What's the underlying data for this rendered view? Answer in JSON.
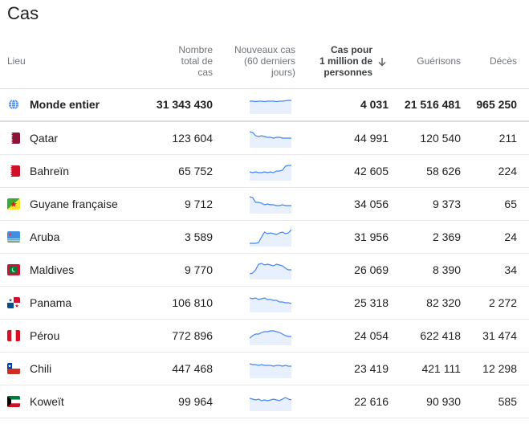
{
  "title": "Cas",
  "headers": {
    "location": "Lieu",
    "total_cases": [
      "Nombre",
      "total de",
      "cas"
    ],
    "new_cases": [
      "Nouveaux cas",
      "(60 derniers",
      "jours)"
    ],
    "per_million": [
      "Cas pour",
      "1 million de",
      "personnes"
    ],
    "recovered": "Guérisons",
    "deaths": "Décès",
    "sort_icon": "arrow-down-icon"
  },
  "rows": [
    {
      "name": "Monde entier",
      "total": "31 343 430",
      "per_million": "4 031",
      "recovered": "21 516 481",
      "deaths": "965 250",
      "icon": "globe-icon",
      "spark": [
        8,
        8,
        8.5,
        8,
        8,
        8.5,
        8,
        8,
        8,
        8.5,
        8,
        8,
        7.5,
        7,
        7
      ]
    },
    {
      "name": "Qatar",
      "total": "123 604",
      "per_million": "44 991",
      "recovered": "120 540",
      "deaths": "211",
      "icon": "flag-qatar-icon",
      "spark": [
        4,
        5,
        9,
        10,
        9,
        10,
        11,
        11,
        12,
        11,
        11,
        12,
        12,
        12,
        12
      ]
    },
    {
      "name": "Bahreïn",
      "total": "65 752",
      "per_million": "42 605",
      "recovered": "58 626",
      "deaths": "224",
      "icon": "flag-bahrain-icon",
      "spark": [
        13,
        14,
        13,
        14,
        14,
        13,
        14,
        13,
        14,
        12,
        12,
        11,
        6,
        5,
        5
      ]
    },
    {
      "name": "Guyane française",
      "total": "9 712",
      "per_million": "34 056",
      "recovered": "9 373",
      "deaths": "65",
      "icon": "flag-french-guiana-icon",
      "spark": [
        3,
        4,
        10,
        10,
        11,
        13,
        12,
        13,
        13,
        14,
        14,
        13,
        14,
        14,
        14
      ]
    },
    {
      "name": "Aruba",
      "total": "3 589",
      "per_million": "31 956",
      "recovered": "2 369",
      "deaths": "24",
      "icon": "flag-aruba-icon",
      "spark": [
        20,
        20,
        20,
        19,
        12,
        6,
        8,
        7,
        8,
        9,
        7,
        6,
        8,
        7,
        3
      ]
    },
    {
      "name": "Maldives",
      "total": "9 770",
      "per_million": "26 069",
      "recovered": "8 390",
      "deaths": "34",
      "icon": "flag-maldives-icon",
      "spark": [
        17,
        16,
        12,
        5,
        4,
        6,
        5,
        6,
        7,
        5,
        6,
        7,
        10,
        12,
        12
      ]
    },
    {
      "name": "Panama",
      "total": "106 810",
      "per_million": "25 318",
      "recovered": "82 320",
      "deaths": "2 272",
      "icon": "flag-panama-icon",
      "spark": [
        6,
        7,
        6,
        8,
        7,
        6,
        8,
        8,
        9,
        9,
        11,
        11,
        12,
        12,
        13
      ]
    },
    {
      "name": "Pérou",
      "total": "772 896",
      "per_million": "24 054",
      "recovered": "622 418",
      "deaths": "31 474",
      "icon": "flag-peru-icon",
      "spark": [
        15,
        12,
        10,
        10,
        8,
        7,
        7,
        6,
        6,
        7,
        8,
        10,
        12,
        13,
        13
      ]
    },
    {
      "name": "Chili",
      "total": "447 468",
      "per_million": "23 419",
      "recovered": "421 111",
      "deaths": "12 298",
      "icon": "flag-chile-icon",
      "spark": [
        6,
        7,
        7,
        8,
        7,
        8,
        8,
        8,
        9,
        8,
        8,
        9,
        8,
        9,
        9
      ]
    },
    {
      "name": "Koweït",
      "total": "99 964",
      "per_million": "22 616",
      "recovered": "90 930",
      "deaths": "585",
      "icon": "flag-kuwait-icon",
      "spark": [
        8,
        9,
        10,
        9,
        11,
        10,
        11,
        10,
        9,
        10,
        11,
        9,
        7,
        9,
        10
      ]
    }
  ],
  "colors": {
    "spark_line": "#4285f4",
    "spark_fill": "#e8f0fe"
  }
}
